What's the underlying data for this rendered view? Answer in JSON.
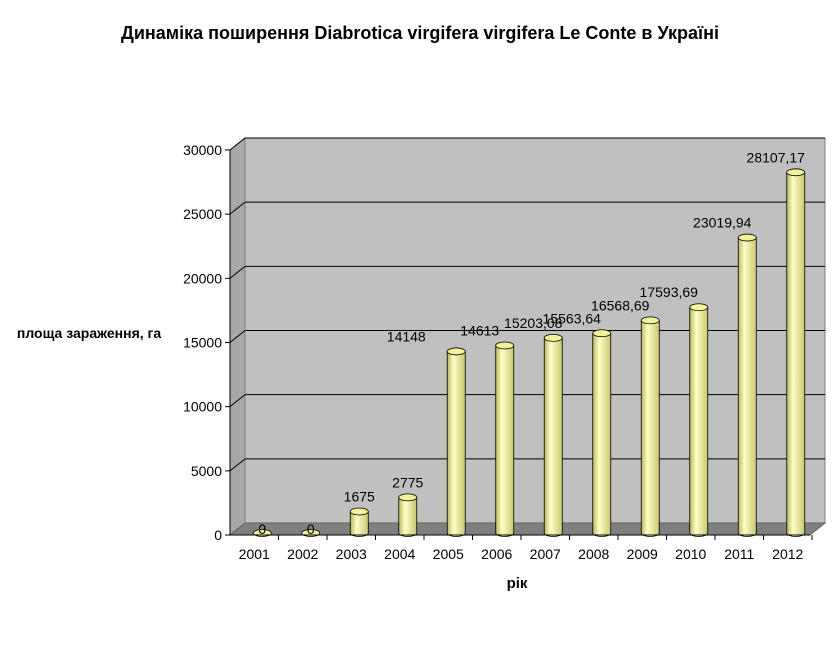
{
  "chart_data": {
    "type": "bar",
    "title": "Динаміка поширення Diabrotica virgifera virgifera Le Conte в Україні",
    "xlabel": "рік",
    "ylabel": "площа зараження, га",
    "categories": [
      "2001",
      "2002",
      "2003",
      "2004",
      "2005",
      "2006",
      "2007",
      "2008",
      "2009",
      "2010",
      "2011",
      "2012"
    ],
    "values": [
      0,
      0,
      1675,
      2775,
      14148,
      14613,
      15203.08,
      15563.64,
      16568.69,
      17593.69,
      23019.94,
      28107.17
    ],
    "data_labels": [
      "0",
      "0",
      "1675",
      "2775",
      "14148",
      "14613",
      "15203,08",
      "15563,64",
      "16568,69",
      "17593,69",
      "23019,94",
      "28107,17"
    ],
    "y_ticks": [
      "0",
      "5000",
      "10000",
      "15000",
      "20000",
      "25000",
      "30000"
    ],
    "ylim": [
      0,
      30000
    ],
    "grid": true,
    "bar_color": "#f2f29a",
    "wall_color": "#c0c0c0",
    "floor_color": "#808080"
  }
}
